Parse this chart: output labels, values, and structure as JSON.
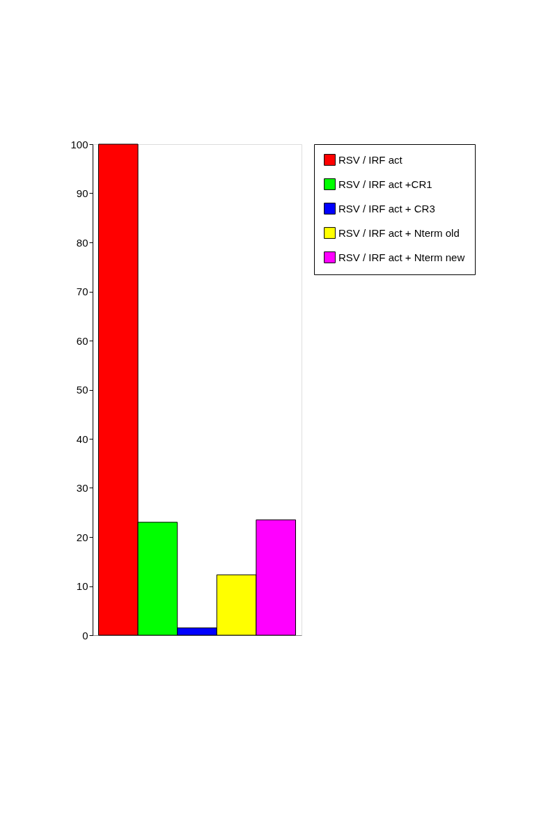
{
  "chart_data": {
    "type": "bar",
    "categories": [
      null
    ],
    "series": [
      {
        "name": "RSV / IRF act",
        "color": "#ff0000",
        "values": [
          100
        ]
      },
      {
        "name": "RSV / IRF act +CR1",
        "color": "#00ff00",
        "values": [
          23
        ]
      },
      {
        "name": "RSV / IRF act + CR3",
        "color": "#0000ff",
        "values": [
          1.5
        ]
      },
      {
        "name": "RSV / IRF act + Nterm old",
        "color": "#ffff00",
        "values": [
          12.3
        ]
      },
      {
        "name": "RSV / IRF act + Nterm new",
        "color": "#ff00ff",
        "values": [
          23.5
        ]
      }
    ],
    "ylim": [
      0,
      100
    ],
    "yticks": [
      0,
      10,
      20,
      30,
      40,
      50,
      60,
      70,
      80,
      90,
      100
    ],
    "grid": false,
    "legend": "right",
    "tick_labels": "y"
  }
}
